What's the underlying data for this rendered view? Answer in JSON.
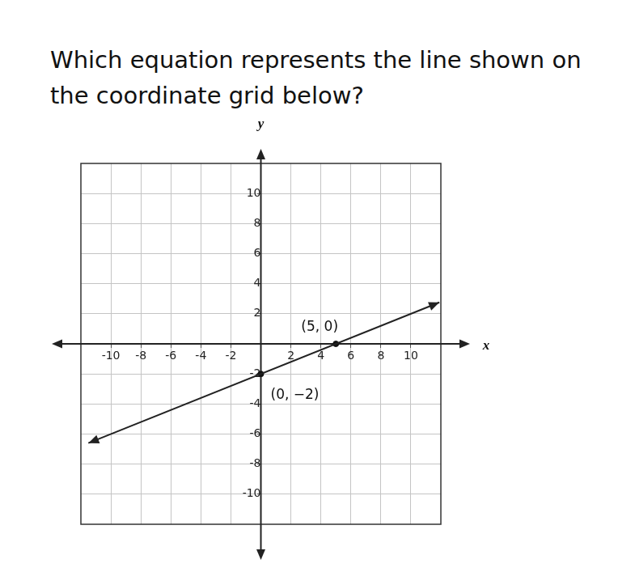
{
  "chart_data": {
    "type": "line",
    "title": "Which equation represents the line shown on the coordinate grid below?",
    "x_label": "x",
    "y_label": "y",
    "x": [
      -11.5,
      11.9
    ],
    "values": [
      -6.6,
      2.76
    ],
    "color": "#222222",
    "line_style": "solid",
    "marker": "arrow",
    "annotations": [
      {
        "x": 5,
        "y": 0,
        "text": "(5, 0)"
      },
      {
        "x": 0,
        "y": -2,
        "text": "(0, −2)"
      }
    ],
    "xlim": [
      -12,
      12
    ],
    "xticks": [
      -10,
      -8,
      -6,
      -4,
      -2,
      2,
      4,
      6,
      8,
      10
    ],
    "ylim": [
      -12,
      12
    ],
    "yticks": [
      -10,
      -8,
      -6,
      -4,
      -2,
      2,
      4,
      6,
      8,
      10
    ],
    "grid": true
  }
}
